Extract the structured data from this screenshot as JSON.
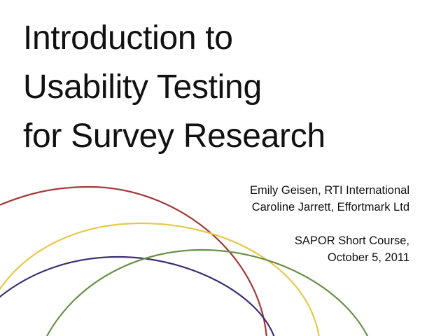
{
  "slide": {
    "title_lines": [
      "Introduction to",
      "Usability Testing",
      "for Survey Research"
    ],
    "authors": [
      "Emily Geisen, RTI International",
      "Caroline Jarrett, Effortmark Ltd"
    ],
    "event": [
      "SAPOR Short Course,",
      "October 5, 2011"
    ]
  },
  "colors": {
    "arc_red": "#a33a3a",
    "arc_yellow": "#e8c84a",
    "arc_purple": "#3d2f73",
    "arc_green": "#6a9148"
  }
}
